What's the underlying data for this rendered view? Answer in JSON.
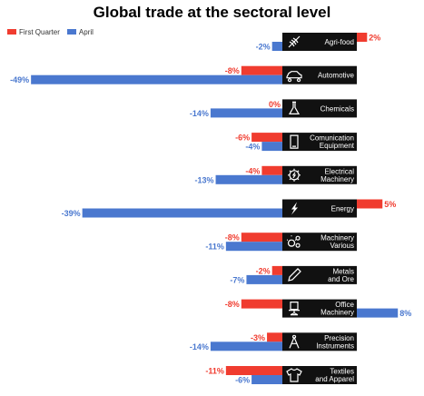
{
  "chart_data": {
    "type": "bar",
    "title": "Global trade at the sectoral level",
    "categories": [
      "Agri-food",
      "Automotive",
      "Chemicals",
      "Comunication Equipment",
      "Electrical Machinery",
      "Energy",
      "Machinery Various",
      "Metals and Ore",
      "Office Machinery",
      "Precision Instruments",
      "Textiles and Apparel"
    ],
    "category_icons": [
      "wheat-icon",
      "car-icon",
      "flask-icon",
      "phone-icon",
      "gear-bolt-icon",
      "lightning-icon",
      "gears-icon",
      "pencil-icon",
      "office-chair-icon",
      "compass-icon",
      "clothing-icon"
    ],
    "series": [
      {
        "name": "First Quarter",
        "color": "#f03c2f",
        "values": [
          2,
          -8,
          0,
          -6,
          -4,
          5,
          -8,
          -2,
          -8,
          -3,
          -11
        ]
      },
      {
        "name": "April",
        "color": "#4a78cf",
        "values": [
          -2,
          -49,
          -14,
          -4,
          -13,
          -39,
          -11,
          -7,
          8,
          -14,
          -6
        ]
      }
    ],
    "value_suffix": "%",
    "legend_position": "top-left",
    "grid": false
  }
}
